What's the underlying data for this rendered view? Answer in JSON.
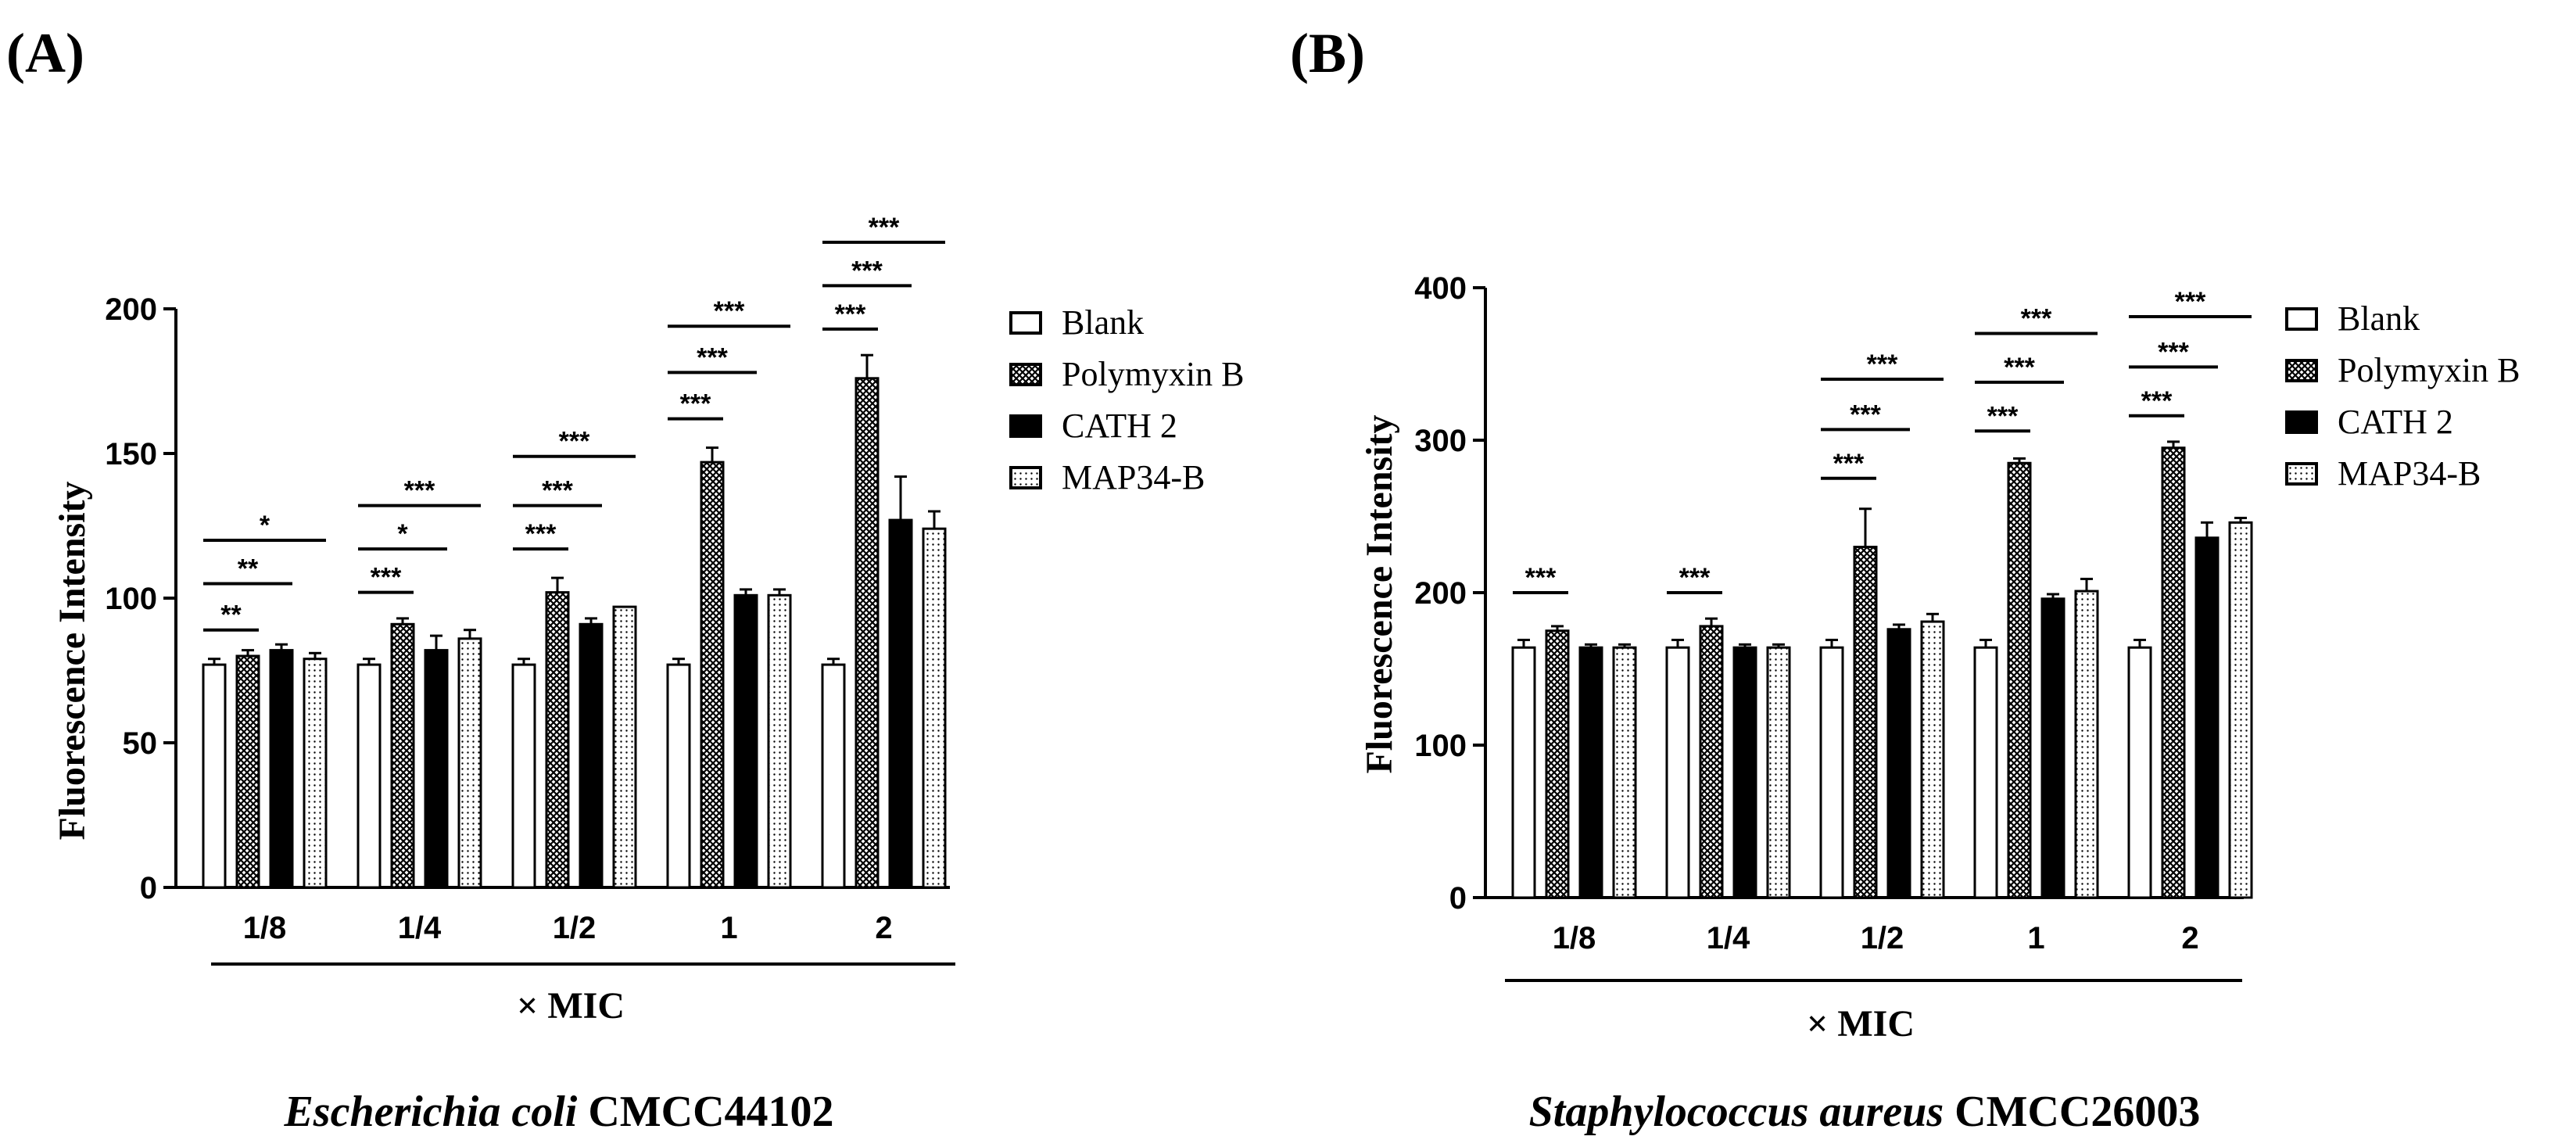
{
  "colors": {
    "ink": "#000000",
    "paper": "#ffffff"
  },
  "chart_data": [
    {
      "type": "bar",
      "panel_label": "(A)",
      "title_italic": "Escherichia coli",
      "title_rest": " CMCC44102",
      "xlabel": "× MIC",
      "ylabel": "Fluorescence Intensity",
      "ylim": [
        0,
        200
      ],
      "yticks": [
        "0",
        "50",
        "100",
        "150",
        "200"
      ],
      "ytick_values": [
        0,
        50,
        100,
        150,
        200
      ],
      "categories": [
        "1/8",
        "1/4",
        "1/2",
        "1",
        "2"
      ],
      "series": [
        {
          "name": "Blank",
          "pattern": "blank",
          "values": [
            77,
            77,
            77,
            77,
            77
          ],
          "errors": [
            2,
            2,
            2,
            2,
            2
          ]
        },
        {
          "name": "Polymyxin B",
          "pattern": "crosshatch",
          "values": [
            80,
            91,
            102,
            147,
            176
          ],
          "errors": [
            2,
            2,
            5,
            5,
            8
          ]
        },
        {
          "name": "CATH 2",
          "pattern": "solid",
          "values": [
            82,
            82,
            91,
            101,
            127
          ],
          "errors": [
            2,
            5,
            2,
            2,
            15
          ]
        },
        {
          "name": "MAP34-B",
          "pattern": "dotted",
          "values": [
            79,
            86,
            97,
            101,
            124
          ],
          "errors": [
            2,
            3,
            0,
            2,
            6
          ]
        }
      ],
      "significance": [
        {
          "group": 0,
          "from": 0,
          "to": 1,
          "y": 89,
          "label": "**"
        },
        {
          "group": 0,
          "from": 0,
          "to": 2,
          "y": 105,
          "label": "**"
        },
        {
          "group": 0,
          "from": 0,
          "to": 3,
          "y": 120,
          "label": "*"
        },
        {
          "group": 1,
          "from": 0,
          "to": 1,
          "y": 102,
          "label": "***"
        },
        {
          "group": 1,
          "from": 0,
          "to": 2,
          "y": 117,
          "label": "*"
        },
        {
          "group": 1,
          "from": 0,
          "to": 3,
          "y": 132,
          "label": "***"
        },
        {
          "group": 2,
          "from": 0,
          "to": 1,
          "y": 117,
          "label": "***"
        },
        {
          "group": 2,
          "from": 0,
          "to": 2,
          "y": 132,
          "label": "***"
        },
        {
          "group": 2,
          "from": 0,
          "to": 3,
          "y": 149,
          "label": "***"
        },
        {
          "group": 3,
          "from": 0,
          "to": 1,
          "y": 162,
          "label": "***"
        },
        {
          "group": 3,
          "from": 0,
          "to": 2,
          "y": 178,
          "label": "***"
        },
        {
          "group": 3,
          "from": 0,
          "to": 3,
          "y": 194,
          "label": "***"
        },
        {
          "group": 4,
          "from": 0,
          "to": 1,
          "y": 193,
          "label": "***"
        },
        {
          "group": 4,
          "from": 0,
          "to": 2,
          "y": 208,
          "label": "***"
        },
        {
          "group": 4,
          "from": 0,
          "to": 3,
          "y": 223,
          "label": "***"
        }
      ]
    },
    {
      "type": "bar",
      "panel_label": "(B)",
      "title_italic": "Staphylococcus aureus",
      "title_rest": " CMCC26003",
      "xlabel": "× MIC",
      "ylabel": "Fluorescence Intensity",
      "ylim": [
        0,
        400
      ],
      "yticks": [
        "0",
        "100",
        "200",
        "300",
        "400"
      ],
      "ytick_values": [
        0,
        100,
        200,
        300,
        400
      ],
      "categories": [
        "1/8",
        "1/4",
        "1/2",
        "1",
        "2"
      ],
      "series": [
        {
          "name": "Blank",
          "pattern": "blank",
          "values": [
            164,
            164,
            164,
            164,
            164
          ],
          "errors": [
            5,
            5,
            5,
            5,
            5
          ]
        },
        {
          "name": "Polymyxin B",
          "pattern": "crosshatch",
          "values": [
            175,
            178,
            230,
            285,
            295
          ],
          "errors": [
            3,
            5,
            25,
            3,
            4
          ]
        },
        {
          "name": "CATH 2",
          "pattern": "solid",
          "values": [
            164,
            164,
            176,
            196,
            236
          ],
          "errors": [
            2,
            2,
            3,
            3,
            10
          ]
        },
        {
          "name": "MAP34-B",
          "pattern": "dotted",
          "values": [
            164,
            164,
            181,
            201,
            246
          ],
          "errors": [
            2,
            2,
            5,
            8,
            3
          ]
        }
      ],
      "significance": [
        {
          "group": 0,
          "from": 0,
          "to": 1,
          "y": 200,
          "label": "***"
        },
        {
          "group": 1,
          "from": 0,
          "to": 1,
          "y": 200,
          "label": "***"
        },
        {
          "group": 2,
          "from": 0,
          "to": 1,
          "y": 275,
          "label": "***"
        },
        {
          "group": 2,
          "from": 0,
          "to": 2,
          "y": 307,
          "label": "***"
        },
        {
          "group": 2,
          "from": 0,
          "to": 3,
          "y": 340,
          "label": "***"
        },
        {
          "group": 3,
          "from": 0,
          "to": 1,
          "y": 306,
          "label": "***"
        },
        {
          "group": 3,
          "from": 0,
          "to": 2,
          "y": 338,
          "label": "***"
        },
        {
          "group": 3,
          "from": 0,
          "to": 3,
          "y": 370,
          "label": "***"
        },
        {
          "group": 4,
          "from": 0,
          "to": 1,
          "y": 316,
          "label": "***"
        },
        {
          "group": 4,
          "from": 0,
          "to": 2,
          "y": 348,
          "label": "***"
        },
        {
          "group": 4,
          "from": 0,
          "to": 3,
          "y": 381,
          "label": "***"
        }
      ]
    }
  ]
}
